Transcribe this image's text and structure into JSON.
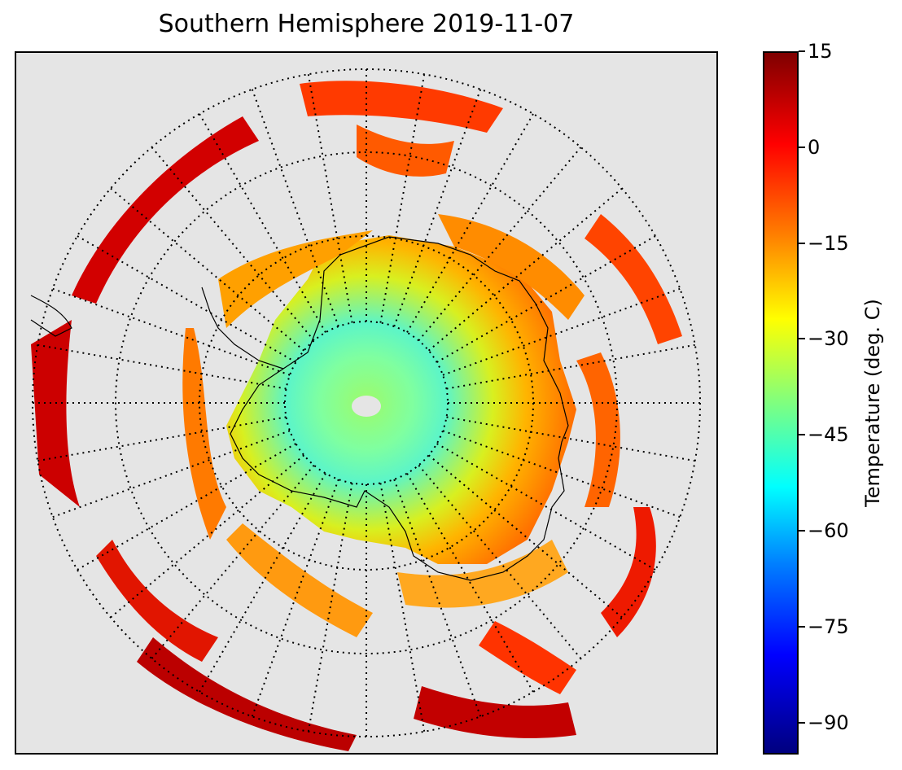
{
  "title": "Southern Hemisphere 2019-11-07",
  "map": {
    "projection": "south-polar-stereographic",
    "variable": "temperature",
    "graticule_style": "dotted",
    "coastline_color": "#000000",
    "background_color": "#e5e5e5"
  },
  "colorbar": {
    "label": "Temperature (deg. C)",
    "colormap": "jet",
    "min": -95,
    "max": 15,
    "ticks": [
      "15",
      "0",
      "−15",
      "−30",
      "−45",
      "−60",
      "−75",
      "−90"
    ]
  }
}
